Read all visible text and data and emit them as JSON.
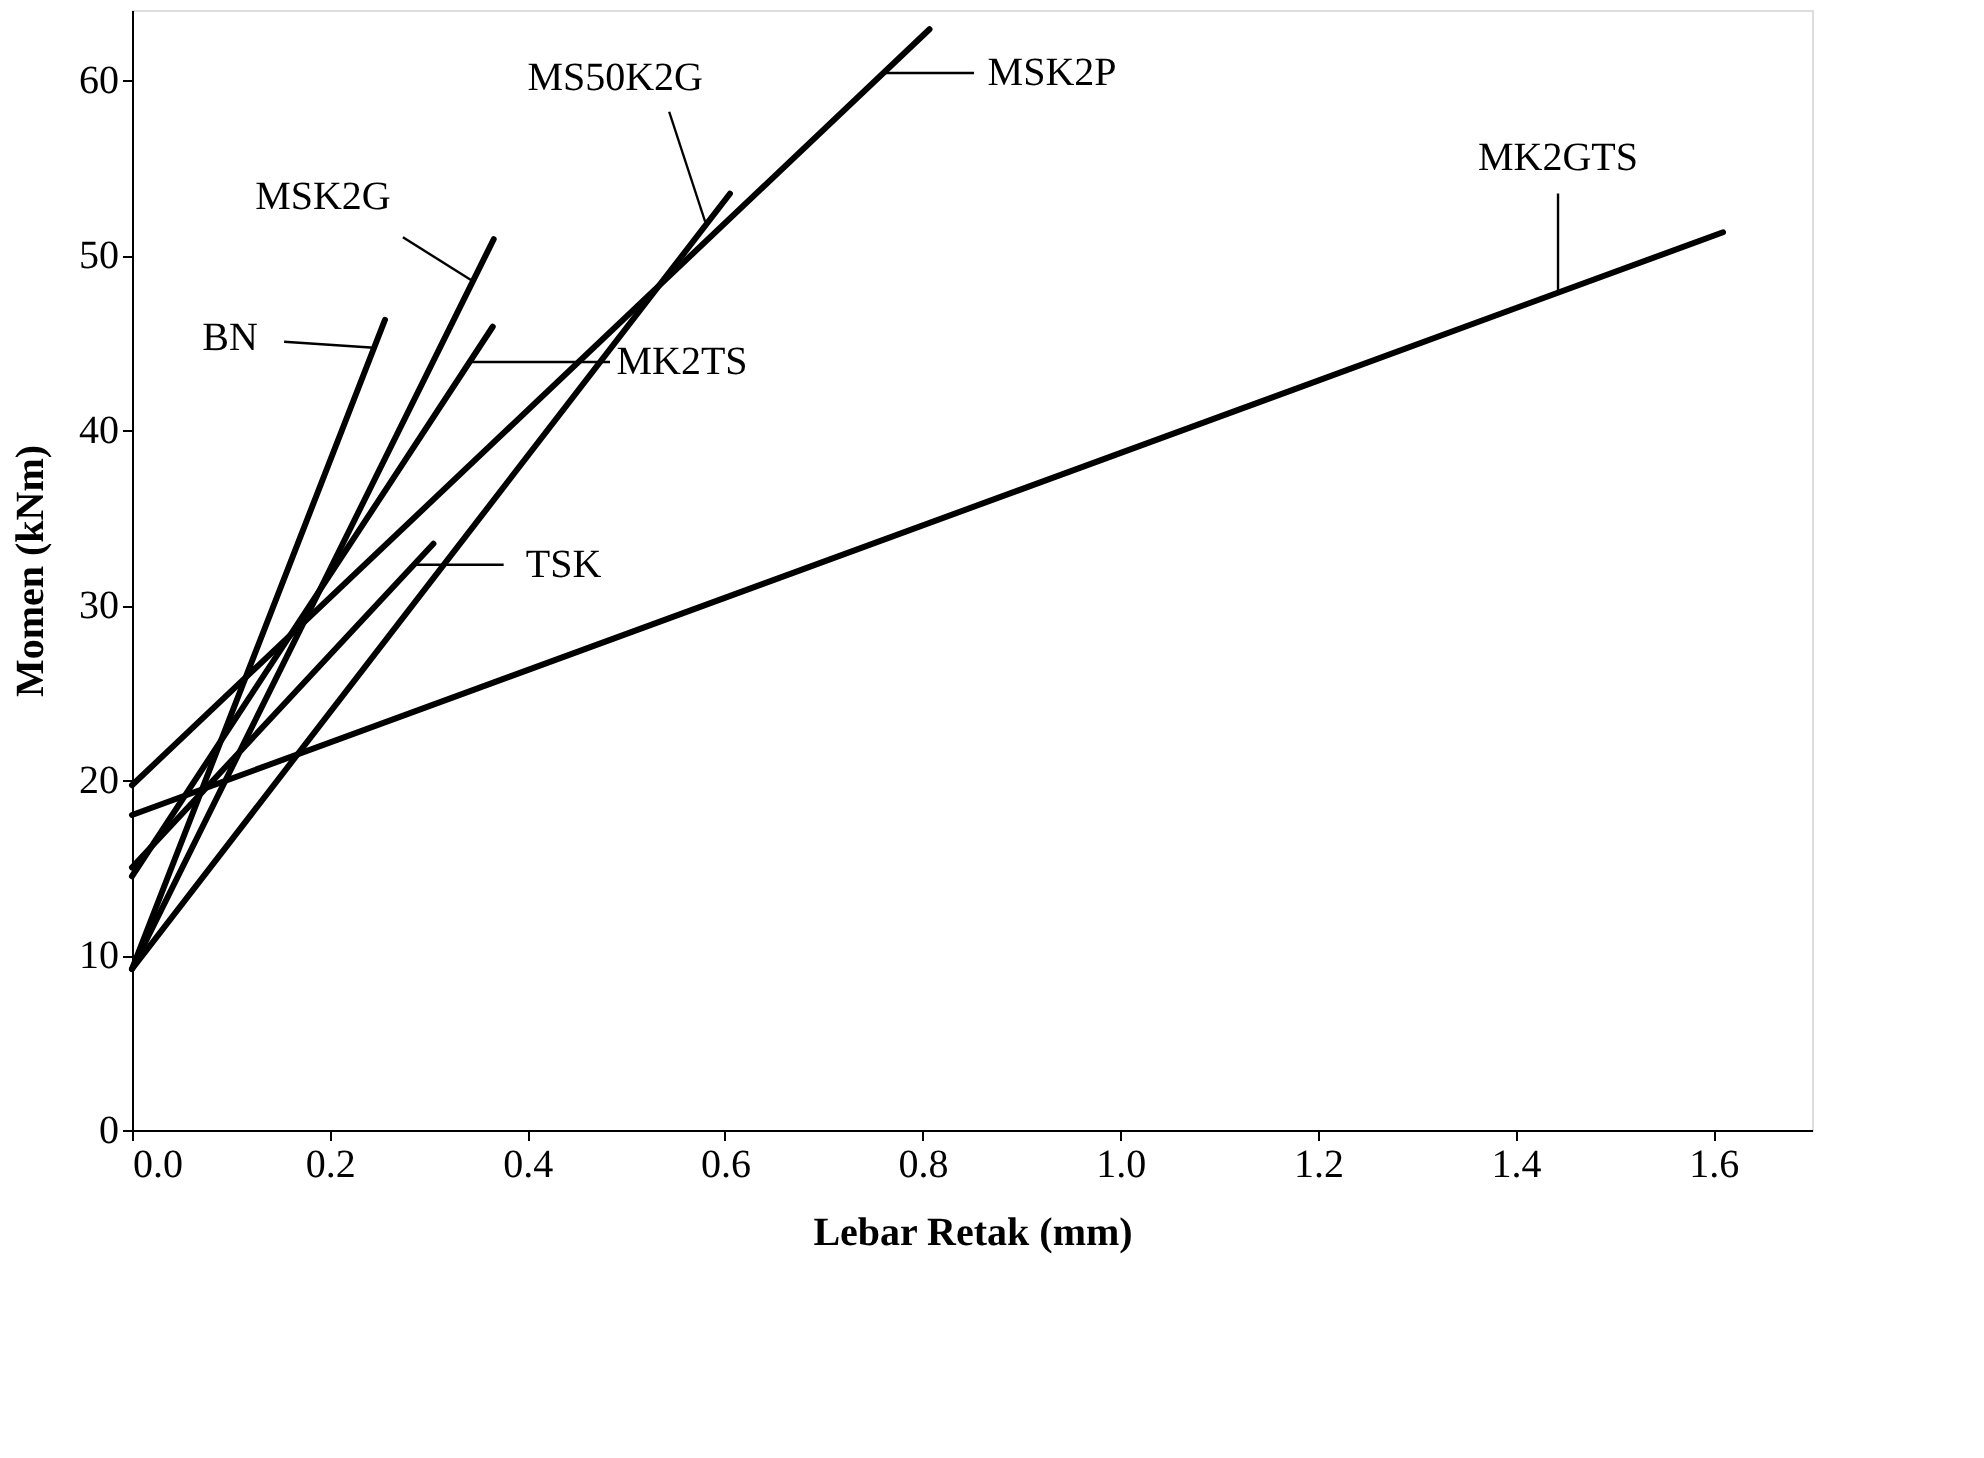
{
  "chart_data": {
    "type": "line",
    "xlabel": "Lebar Retak (mm)",
    "ylabel": "Momen (kNm)",
    "xlim": [
      0,
      1.7
    ],
    "ylim": [
      0,
      64
    ],
    "xticks": [
      {
        "value": 0,
        "label": "0.0"
      },
      {
        "value": 0.2,
        "label": "0.2"
      },
      {
        "value": 0.4,
        "label": "0.4"
      },
      {
        "value": 0.6,
        "label": "0.6"
      },
      {
        "value": 0.8,
        "label": "0.8"
      },
      {
        "value": 1,
        "label": "1.0"
      },
      {
        "value": 1.2,
        "label": "1.2"
      },
      {
        "value": 1.4,
        "label": "1.4"
      },
      {
        "value": 1.6,
        "label": "1.6"
      }
    ],
    "yticks": [
      0,
      10,
      20,
      30,
      40,
      50,
      60
    ],
    "grid": false,
    "marker": "none",
    "line_style": "solid",
    "series": [
      {
        "color": "#000000",
        "x": [
          0,
          0.256
        ],
        "values": [
          9.2,
          46.3
        ]
      },
      {
        "color": "#000000",
        "x": [
          0,
          0.366
        ],
        "values": [
          9.2,
          50.9
        ]
      },
      {
        "color": "#000000",
        "x": [
          0,
          0.605
        ],
        "values": [
          9.2,
          53.5
        ]
      },
      {
        "color": "#000000",
        "x": [
          0,
          0.365
        ],
        "values": [
          14.5,
          45.9
        ]
      },
      {
        "color": "#000000",
        "x": [
          0,
          0.305
        ],
        "values": [
          15,
          33.5
        ]
      },
      {
        "color": "#000000",
        "x": [
          0,
          0.807
        ],
        "values": [
          19.7,
          62.9
        ]
      },
      {
        "color": "#000000",
        "x": [
          0,
          1.61
        ],
        "values": [
          18,
          51.3
        ]
      }
    ],
    "annotations": [
      {
        "text": "BN",
        "x": 0.245,
        "y": 44.7
      },
      {
        "text": "MSK2G",
        "x": 0.345,
        "y": 48.5
      },
      {
        "text": "MS50K2G",
        "x": 0.58,
        "y": 51.9
      },
      "MK2TS",
      {
        "text": "TSK",
        "x": 0.285,
        "y": 32.3
      },
      {
        "text": "MSK2P",
        "x": 0.761,
        "y": 60.4
      },
      {
        "text": "MK2GTS",
        "x": 1.443,
        "y": 47.8
      }
    ]
  }
}
